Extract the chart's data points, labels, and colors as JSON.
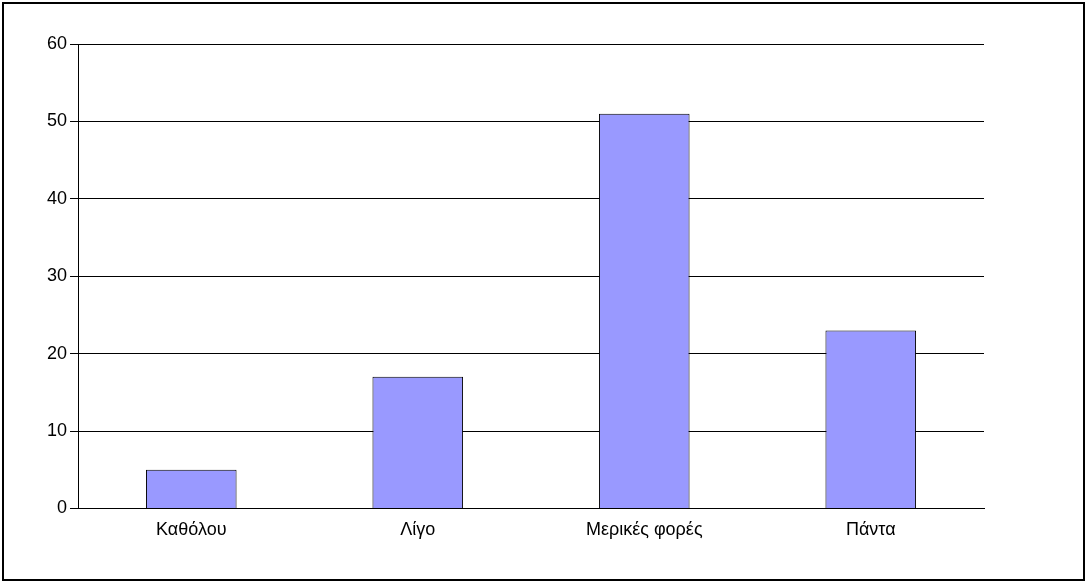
{
  "chart_data": {
    "type": "bar",
    "categories": [
      "Καθόλου",
      "Λίγο",
      "Μερικές φορές",
      "Πάντα"
    ],
    "values": [
      5,
      17,
      51,
      23
    ],
    "color": "#9999ff",
    "ylim": [
      0,
      60
    ],
    "yticks": [
      0,
      10,
      20,
      30,
      40,
      50,
      60
    ],
    "grid": "y",
    "legend": false
  }
}
